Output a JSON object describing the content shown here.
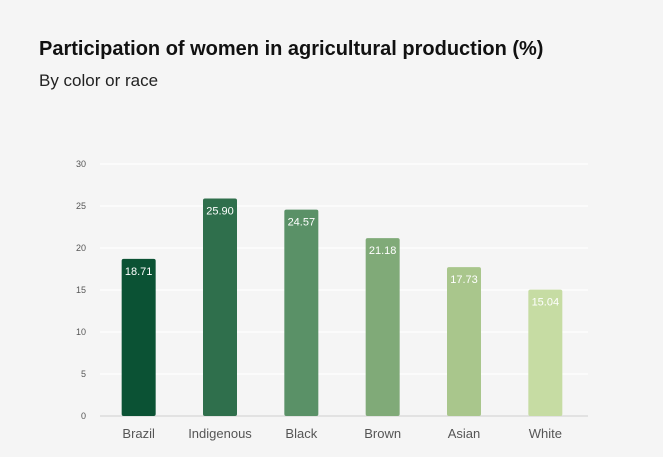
{
  "title": "Participation of women in agricultural production (%)",
  "subtitle": "By color or race",
  "chart_data": {
    "type": "bar",
    "title": "Participation of women in agricultural production (%)",
    "subtitle": "By color or race",
    "categories": [
      "Brazil",
      "Indigenous",
      "Black",
      "Brown",
      "Asian",
      "White"
    ],
    "values": [
      18.71,
      25.9,
      24.57,
      21.18,
      17.73,
      15.04
    ],
    "data_labels": [
      "18.71",
      "25.90",
      "24.57",
      "21.18",
      "17.73",
      "15.04"
    ],
    "colors": [
      "#0b5234",
      "#2f6f4c",
      "#5a9167",
      "#80aa78",
      "#a9c68c",
      "#c6dca3"
    ],
    "yticks": [
      0,
      5,
      10,
      15,
      20,
      25,
      30
    ],
    "ylim": [
      0,
      30
    ],
    "grid": true,
    "xlabel": "",
    "ylabel": ""
  }
}
